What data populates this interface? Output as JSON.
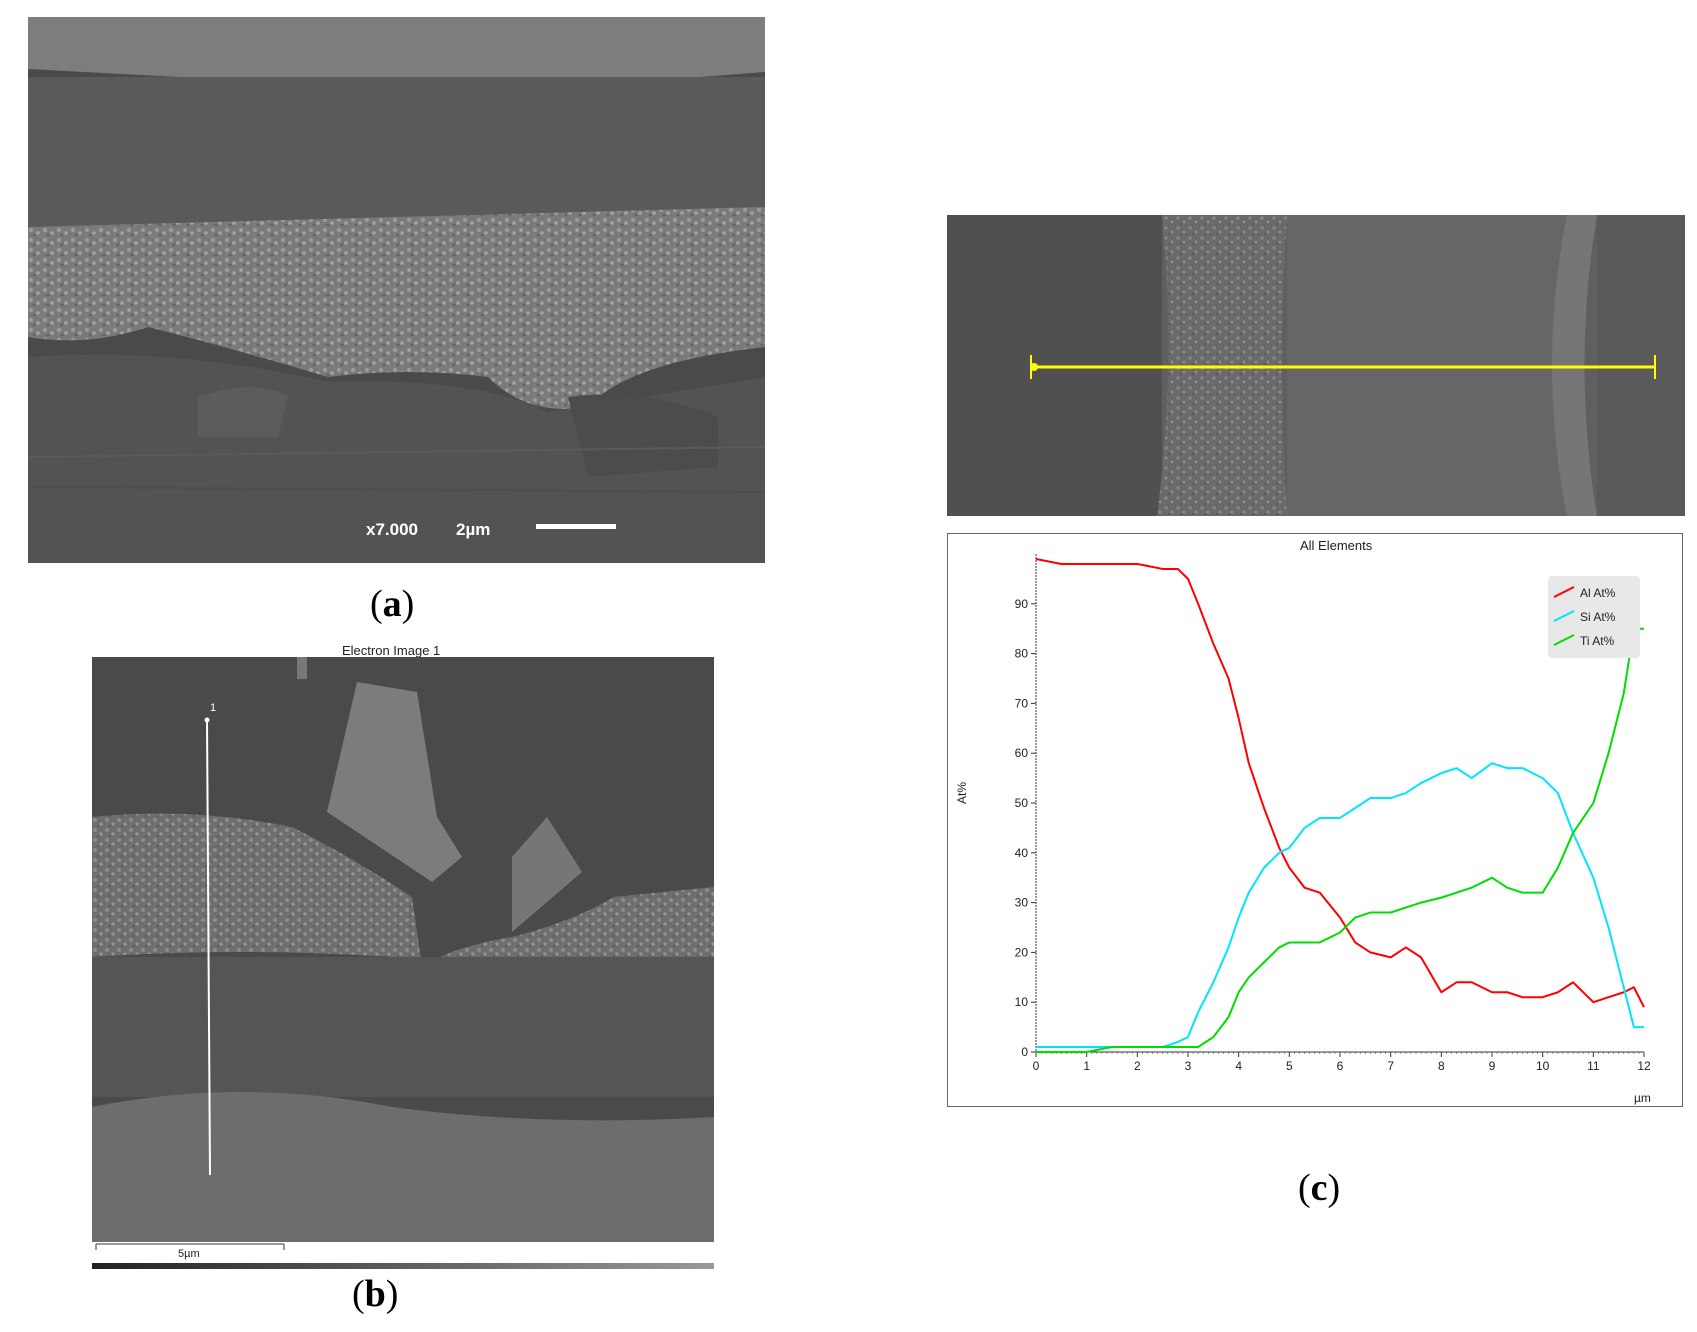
{
  "panels": {
    "a": {
      "label_open": "(",
      "label_letter": "a",
      "label_close": ")",
      "magnification": "x7.000",
      "scalebar": "2µm"
    },
    "b": {
      "label_open": "(",
      "label_letter": "b",
      "label_close": ")",
      "title": "Electron Image 1",
      "line_label": "1",
      "scalebar": "5µm"
    },
    "c": {
      "label_open": "(",
      "label_letter": "c",
      "label_close": ")"
    }
  },
  "colors": {
    "al": "#ff0000",
    "si": "#00e5ff",
    "ti": "#00dd00",
    "line_marker": "#ffff00"
  },
  "chart_data": {
    "type": "line",
    "title": "All Elements",
    "xlabel": "µm",
    "ylabel": "At%",
    "xlim": [
      0,
      12
    ],
    "ylim": [
      0,
      100
    ],
    "x_ticks": [
      "0",
      "1",
      "2",
      "3",
      "4",
      "5",
      "6",
      "7",
      "8",
      "9",
      "10",
      "11",
      "12"
    ],
    "y_ticks": [
      "0",
      "10",
      "20",
      "30",
      "40",
      "50",
      "60",
      "70",
      "80",
      "90"
    ],
    "legend_position": "top-right",
    "x": [
      0,
      0.5,
      1,
      1.5,
      2,
      2.5,
      2.8,
      3,
      3.2,
      3.5,
      3.8,
      4,
      4.2,
      4.5,
      4.8,
      5,
      5.3,
      5.6,
      6,
      6.3,
      6.6,
      7,
      7.3,
      7.6,
      8,
      8.3,
      8.6,
      9,
      9.3,
      9.6,
      10,
      10.3,
      10.6,
      11,
      11.3,
      11.6,
      11.8,
      12
    ],
    "series": [
      {
        "name": "Al At%",
        "values": [
          99,
          98,
          98,
          98,
          98,
          97,
          97,
          95,
          90,
          82,
          75,
          67,
          58,
          49,
          41,
          37,
          33,
          32,
          27,
          22,
          20,
          19,
          21,
          19,
          12,
          14,
          14,
          12,
          12,
          11,
          11,
          12,
          14,
          10,
          11,
          12,
          13,
          9
        ]
      },
      {
        "name": "Si At%",
        "values": [
          1,
          1,
          1,
          1,
          1,
          1,
          2,
          3,
          8,
          14,
          21,
          27,
          32,
          37,
          40,
          41,
          45,
          47,
          47,
          49,
          51,
          51,
          52,
          54,
          56,
          57,
          55,
          58,
          57,
          57,
          55,
          52,
          44,
          35,
          25,
          13,
          5,
          5
        ]
      },
      {
        "name": "Ti At%",
        "values": [
          0,
          0,
          0,
          1,
          1,
          1,
          1,
          1,
          1,
          3,
          7,
          12,
          15,
          18,
          21,
          22,
          22,
          22,
          24,
          27,
          28,
          28,
          29,
          30,
          31,
          32,
          33,
          35,
          33,
          32,
          32,
          37,
          44,
          50,
          60,
          72,
          85,
          85
        ]
      }
    ]
  }
}
